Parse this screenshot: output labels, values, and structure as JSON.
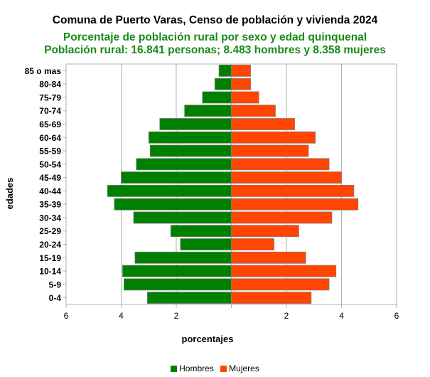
{
  "chart_data": {
    "type": "bar",
    "title": "Comuna de Puerto Varas, Censo de población y vivienda 2024",
    "subtitle_line1": "Porcentaje de población rural por sexo y edad quinquenal",
    "subtitle_line2": "Población rural: 16.841 personas; 8.483 hombres y 8.358 mujeres",
    "xlabel": "porcentajes",
    "ylabel": "edades",
    "xlim": [
      -6,
      6
    ],
    "x_ticks": [
      {
        "value": -6,
        "label": "6"
      },
      {
        "value": -4,
        "label": "4"
      },
      {
        "value": -2,
        "label": "2"
      },
      {
        "value": 0,
        "label": ""
      },
      {
        "value": 2,
        "label": "2"
      },
      {
        "value": 4,
        "label": "4"
      },
      {
        "value": 6,
        "label": "6"
      }
    ],
    "grid": true,
    "legend_position": "bottom",
    "categories": [
      "85 o mas",
      "80-84",
      "75-79",
      "70-74",
      "65-69",
      "60-64",
      "55-59",
      "50-54",
      "45-49",
      "40-44",
      "35-39",
      "30-34",
      "25-29",
      "20-24",
      "15-19",
      "10-14",
      "5-9",
      "0-4"
    ],
    "series": [
      {
        "name": "Hombres",
        "color": "#008000",
        "values": [
          0.45,
          0.6,
          1.05,
          1.7,
          2.6,
          3.0,
          2.95,
          3.45,
          4.0,
          4.5,
          4.25,
          3.55,
          2.2,
          1.85,
          3.5,
          3.95,
          3.9,
          3.05
        ]
      },
      {
        "name": "Mujeres",
        "color": "#ff4500",
        "values": [
          0.7,
          0.7,
          1.0,
          1.6,
          2.3,
          3.05,
          2.8,
          3.55,
          4.0,
          4.45,
          4.6,
          3.65,
          2.45,
          1.55,
          2.7,
          3.8,
          3.55,
          2.9
        ]
      }
    ]
  }
}
